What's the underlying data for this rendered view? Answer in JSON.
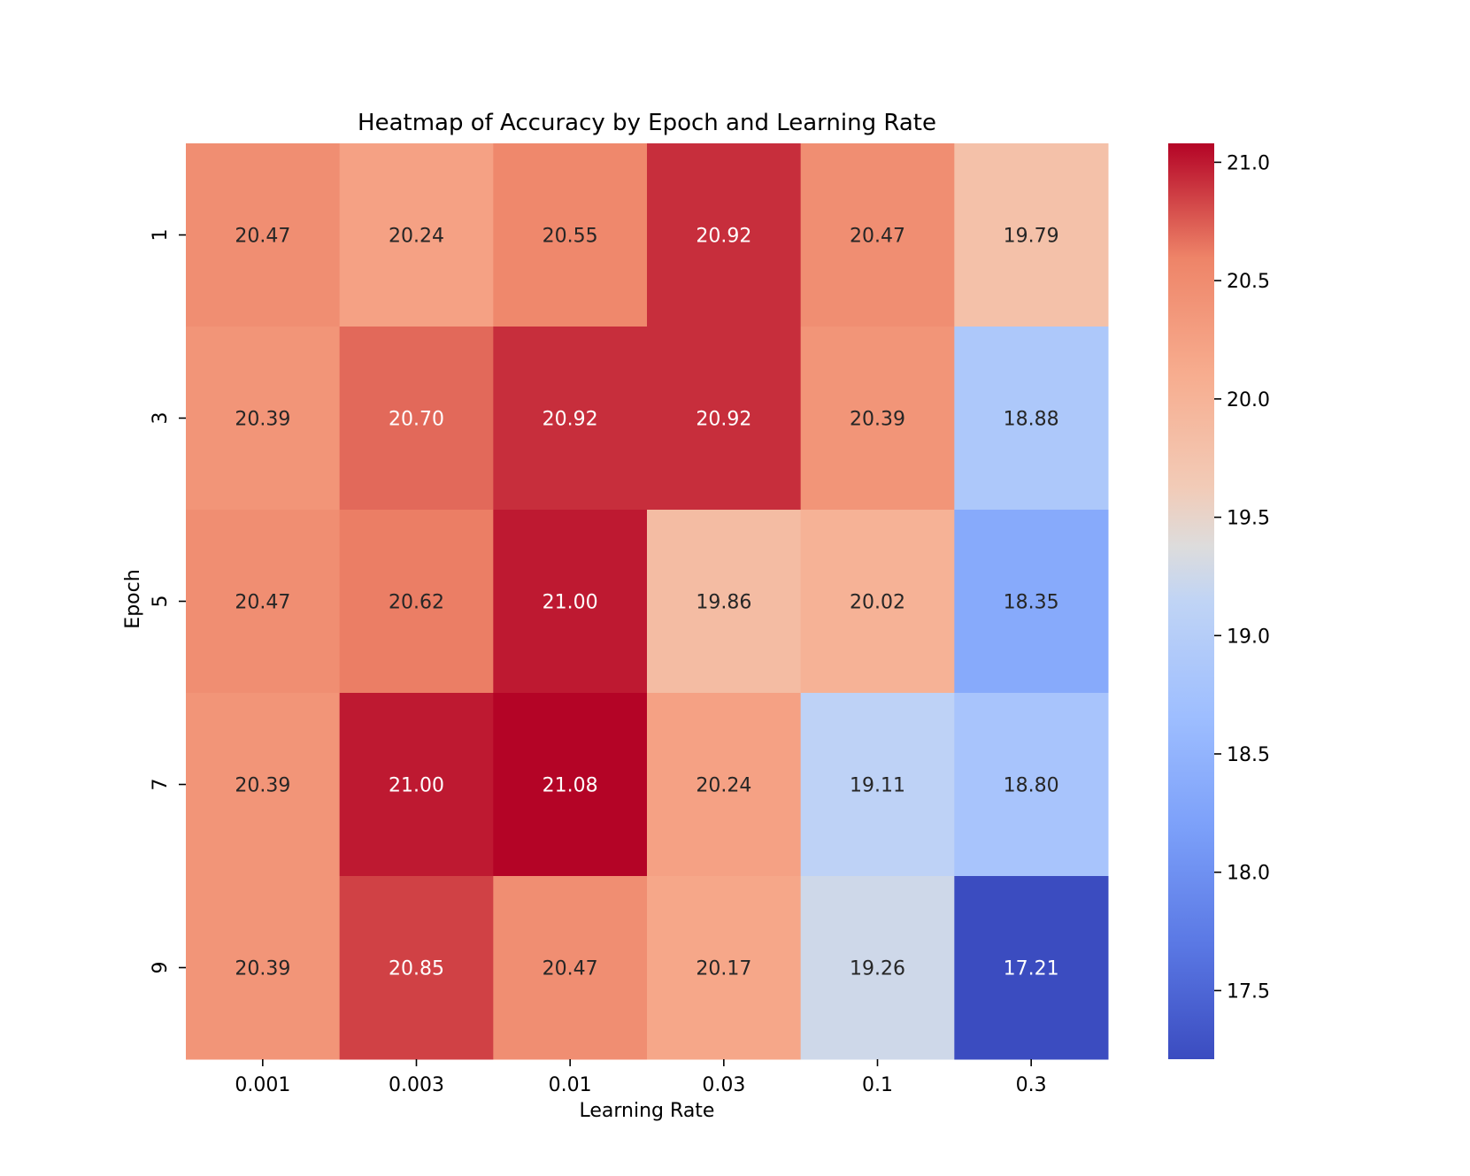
{
  "chart_data": {
    "type": "heatmap",
    "title": "Heatmap of Accuracy by Epoch and Learning Rate",
    "xlabel": "Learning Rate",
    "ylabel": "Epoch",
    "x_categories": [
      "0.001",
      "0.003",
      "0.01",
      "0.03",
      "0.1",
      "0.3"
    ],
    "y_categories": [
      "1",
      "3",
      "5",
      "7",
      "9"
    ],
    "values": [
      [
        20.47,
        20.24,
        20.55,
        20.92,
        20.47,
        19.79
      ],
      [
        20.39,
        20.7,
        20.92,
        20.92,
        20.39,
        18.88
      ],
      [
        20.47,
        20.62,
        21.0,
        19.86,
        20.02,
        18.35
      ],
      [
        20.39,
        21.0,
        21.08,
        20.24,
        19.11,
        18.8
      ],
      [
        20.39,
        20.85,
        20.47,
        20.17,
        19.26,
        17.21
      ]
    ],
    "colormap": "coolwarm",
    "vmin": 17.21,
    "vmax": 21.08,
    "colorbar_ticks": [
      "17.5",
      "18.0",
      "18.5",
      "19.0",
      "19.5",
      "20.0",
      "20.5",
      "21.0"
    ],
    "annotations": true
  }
}
